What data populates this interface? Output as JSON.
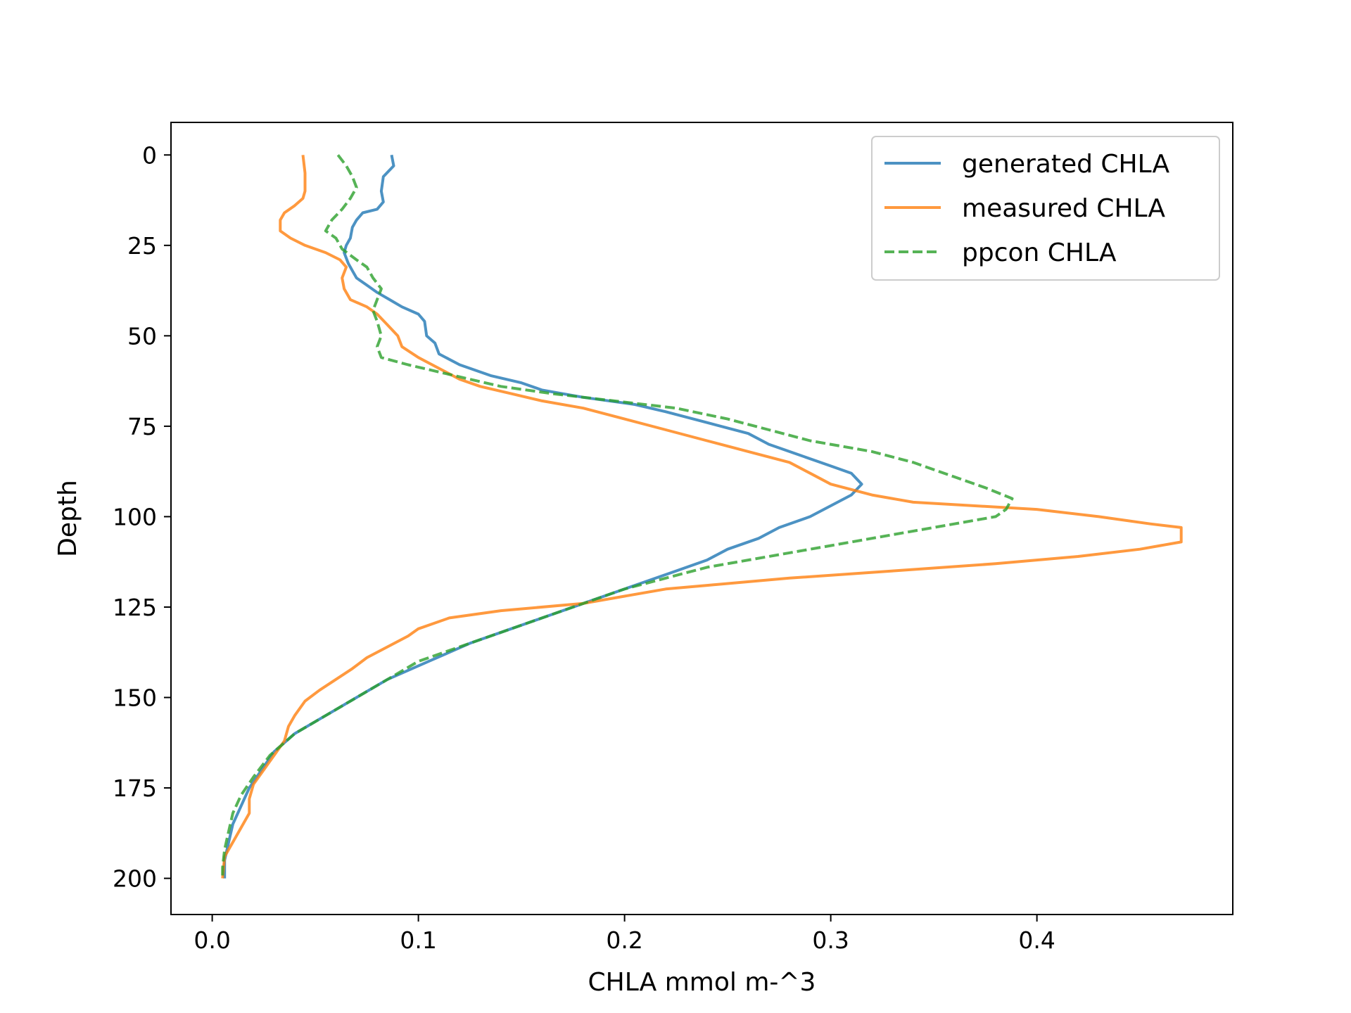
{
  "chart_data": {
    "type": "line",
    "title": "",
    "xlabel": "CHLA mmol m-^3",
    "ylabel": "Depth",
    "xlim": [
      -0.02,
      0.495
    ],
    "ylim": [
      210,
      -9
    ],
    "y_inverted": true,
    "x_ticks": [
      0.0,
      0.1,
      0.2,
      0.3,
      0.4
    ],
    "x_tick_labels": [
      "0.0",
      "0.1",
      "0.2",
      "0.3",
      "0.4"
    ],
    "y_ticks": [
      0,
      25,
      50,
      75,
      100,
      125,
      150,
      175,
      200
    ],
    "y_tick_labels": [
      "0",
      "25",
      "50",
      "75",
      "100",
      "125",
      "150",
      "175",
      "200"
    ],
    "grid": false,
    "legend_position": "top-right",
    "series": [
      {
        "name": "generated CHLA",
        "color": "#1f77b4",
        "dash": "solid",
        "points": [
          [
            0.087,
            0
          ],
          [
            0.088,
            3
          ],
          [
            0.083,
            6
          ],
          [
            0.082,
            10
          ],
          [
            0.083,
            13
          ],
          [
            0.08,
            15
          ],
          [
            0.073,
            16
          ],
          [
            0.07,
            18
          ],
          [
            0.068,
            20
          ],
          [
            0.067,
            23
          ],
          [
            0.065,
            25
          ],
          [
            0.064,
            27
          ],
          [
            0.066,
            30
          ],
          [
            0.068,
            32
          ],
          [
            0.07,
            34
          ],
          [
            0.075,
            36
          ],
          [
            0.08,
            38
          ],
          [
            0.086,
            40
          ],
          [
            0.092,
            42
          ],
          [
            0.1,
            44
          ],
          [
            0.103,
            46
          ],
          [
            0.104,
            50
          ],
          [
            0.108,
            52
          ],
          [
            0.11,
            55
          ],
          [
            0.12,
            58
          ],
          [
            0.135,
            61
          ],
          [
            0.15,
            63
          ],
          [
            0.16,
            65
          ],
          [
            0.18,
            67
          ],
          [
            0.205,
            69
          ],
          [
            0.22,
            71
          ],
          [
            0.24,
            74
          ],
          [
            0.26,
            77
          ],
          [
            0.27,
            80
          ],
          [
            0.285,
            83
          ],
          [
            0.3,
            86
          ],
          [
            0.31,
            88
          ],
          [
            0.315,
            91
          ],
          [
            0.31,
            94
          ],
          [
            0.3,
            97
          ],
          [
            0.29,
            100
          ],
          [
            0.275,
            103
          ],
          [
            0.265,
            106
          ],
          [
            0.25,
            109
          ],
          [
            0.24,
            112
          ],
          [
            0.225,
            115
          ],
          [
            0.21,
            118
          ],
          [
            0.195,
            121
          ],
          [
            0.18,
            124
          ],
          [
            0.165,
            127
          ],
          [
            0.145,
            131
          ],
          [
            0.125,
            135
          ],
          [
            0.105,
            140
          ],
          [
            0.085,
            145
          ],
          [
            0.07,
            150
          ],
          [
            0.055,
            155
          ],
          [
            0.04,
            160
          ],
          [
            0.03,
            165
          ],
          [
            0.024,
            170
          ],
          [
            0.018,
            175
          ],
          [
            0.014,
            180
          ],
          [
            0.01,
            185
          ],
          [
            0.008,
            190
          ],
          [
            0.006,
            195
          ],
          [
            0.006,
            200
          ]
        ]
      },
      {
        "name": "measured CHLA",
        "color": "#ff7f0e",
        "dash": "solid",
        "points": [
          [
            0.044,
            0
          ],
          [
            0.045,
            5
          ],
          [
            0.045,
            10
          ],
          [
            0.044,
            12
          ],
          [
            0.04,
            14
          ],
          [
            0.035,
            16
          ],
          [
            0.033,
            18
          ],
          [
            0.033,
            21
          ],
          [
            0.038,
            23
          ],
          [
            0.045,
            25
          ],
          [
            0.055,
            27
          ],
          [
            0.062,
            29
          ],
          [
            0.065,
            31
          ],
          [
            0.063,
            34
          ],
          [
            0.064,
            37
          ],
          [
            0.067,
            40
          ],
          [
            0.075,
            42
          ],
          [
            0.08,
            44
          ],
          [
            0.085,
            47
          ],
          [
            0.09,
            50
          ],
          [
            0.092,
            53
          ],
          [
            0.1,
            56
          ],
          [
            0.11,
            59
          ],
          [
            0.12,
            62
          ],
          [
            0.13,
            64
          ],
          [
            0.145,
            66
          ],
          [
            0.16,
            68
          ],
          [
            0.18,
            70
          ],
          [
            0.2,
            73
          ],
          [
            0.22,
            76
          ],
          [
            0.24,
            79
          ],
          [
            0.26,
            82
          ],
          [
            0.28,
            85
          ],
          [
            0.29,
            88
          ],
          [
            0.3,
            91
          ],
          [
            0.32,
            94
          ],
          [
            0.34,
            96
          ],
          [
            0.4,
            98
          ],
          [
            0.43,
            100
          ],
          [
            0.455,
            102
          ],
          [
            0.47,
            103
          ],
          [
            0.47,
            107
          ],
          [
            0.45,
            109
          ],
          [
            0.42,
            111
          ],
          [
            0.38,
            113
          ],
          [
            0.33,
            115
          ],
          [
            0.28,
            117
          ],
          [
            0.24,
            119
          ],
          [
            0.22,
            120
          ],
          [
            0.2,
            122
          ],
          [
            0.18,
            124
          ],
          [
            0.14,
            126
          ],
          [
            0.115,
            128
          ],
          [
            0.1,
            131
          ],
          [
            0.095,
            133
          ],
          [
            0.085,
            136
          ],
          [
            0.075,
            139
          ],
          [
            0.068,
            142
          ],
          [
            0.06,
            145
          ],
          [
            0.052,
            148
          ],
          [
            0.045,
            151
          ],
          [
            0.04,
            155
          ],
          [
            0.037,
            158
          ],
          [
            0.035,
            162
          ],
          [
            0.03,
            166
          ],
          [
            0.025,
            170
          ],
          [
            0.02,
            174
          ],
          [
            0.018,
            178
          ],
          [
            0.018,
            182
          ],
          [
            0.014,
            186
          ],
          [
            0.01,
            190
          ],
          [
            0.006,
            194
          ],
          [
            0.005,
            200
          ]
        ]
      },
      {
        "name": "ppcon CHLA",
        "color": "#2ca02c",
        "dash": "dashed",
        "points": [
          [
            0.061,
            0
          ],
          [
            0.065,
            3
          ],
          [
            0.068,
            6
          ],
          [
            0.07,
            9
          ],
          [
            0.067,
            12
          ],
          [
            0.063,
            15
          ],
          [
            0.058,
            18
          ],
          [
            0.055,
            21
          ],
          [
            0.06,
            23
          ],
          [
            0.063,
            26
          ],
          [
            0.07,
            29
          ],
          [
            0.075,
            31
          ],
          [
            0.078,
            34
          ],
          [
            0.082,
            37
          ],
          [
            0.08,
            40
          ],
          [
            0.078,
            43
          ],
          [
            0.08,
            46
          ],
          [
            0.082,
            50
          ],
          [
            0.08,
            53
          ],
          [
            0.082,
            56
          ],
          [
            0.095,
            58
          ],
          [
            0.11,
            60
          ],
          [
            0.125,
            62
          ],
          [
            0.14,
            64
          ],
          [
            0.165,
            66
          ],
          [
            0.195,
            68
          ],
          [
            0.225,
            70
          ],
          [
            0.25,
            73
          ],
          [
            0.27,
            76
          ],
          [
            0.29,
            79
          ],
          [
            0.32,
            82
          ],
          [
            0.34,
            85
          ],
          [
            0.36,
            89
          ],
          [
            0.375,
            92
          ],
          [
            0.388,
            95
          ],
          [
            0.385,
            98
          ],
          [
            0.38,
            100
          ],
          [
            0.36,
            102
          ],
          [
            0.33,
            105
          ],
          [
            0.3,
            108
          ],
          [
            0.27,
            111
          ],
          [
            0.24,
            114
          ],
          [
            0.22,
            117
          ],
          [
            0.2,
            120
          ],
          [
            0.18,
            124
          ],
          [
            0.16,
            128
          ],
          [
            0.14,
            132
          ],
          [
            0.12,
            136
          ],
          [
            0.1,
            140
          ],
          [
            0.085,
            145
          ],
          [
            0.07,
            150
          ],
          [
            0.055,
            155
          ],
          [
            0.04,
            160
          ],
          [
            0.028,
            166
          ],
          [
            0.02,
            172
          ],
          [
            0.014,
            177
          ],
          [
            0.01,
            182
          ],
          [
            0.008,
            187
          ],
          [
            0.006,
            192
          ],
          [
            0.005,
            197
          ],
          [
            0.005,
            200
          ]
        ]
      }
    ]
  }
}
